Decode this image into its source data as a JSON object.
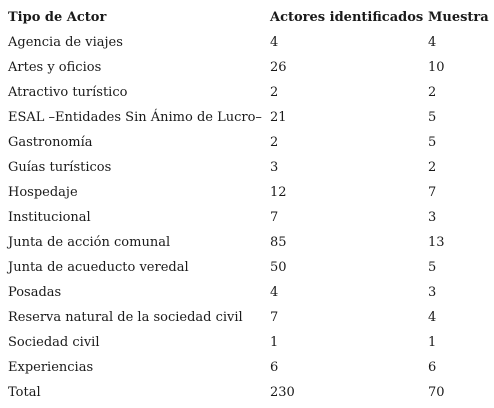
{
  "table": {
    "headers": [
      "Tipo de Actor",
      "Actores identificados",
      "Muestra"
    ],
    "rows": [
      [
        "Agencia de viajes",
        "4",
        "4"
      ],
      [
        "Artes y oficios",
        "26",
        "10"
      ],
      [
        "Atractivo turístico",
        "2",
        "2"
      ],
      [
        "ESAL –Entidades Sin Ánimo de Lucro–",
        "21",
        "5"
      ],
      [
        "Gastronomía",
        "2",
        "5"
      ],
      [
        "Guías turísticos",
        "3",
        "2"
      ],
      [
        "Hospedaje",
        "12",
        "7"
      ],
      [
        "Institucional",
        "7",
        "3"
      ],
      [
        "Junta de acción comunal",
        "85",
        "13"
      ],
      [
        "Junta de acueducto veredal",
        "50",
        "5"
      ],
      [
        "Posadas",
        "4",
        "3"
      ],
      [
        "Reserva natural de la sociedad civil",
        "7",
        "4"
      ],
      [
        "Sociedad civil",
        "1",
        "1"
      ],
      [
        "Experiencias",
        "6",
        "6"
      ],
      [
        "Total",
        "230",
        "70"
      ]
    ]
  }
}
